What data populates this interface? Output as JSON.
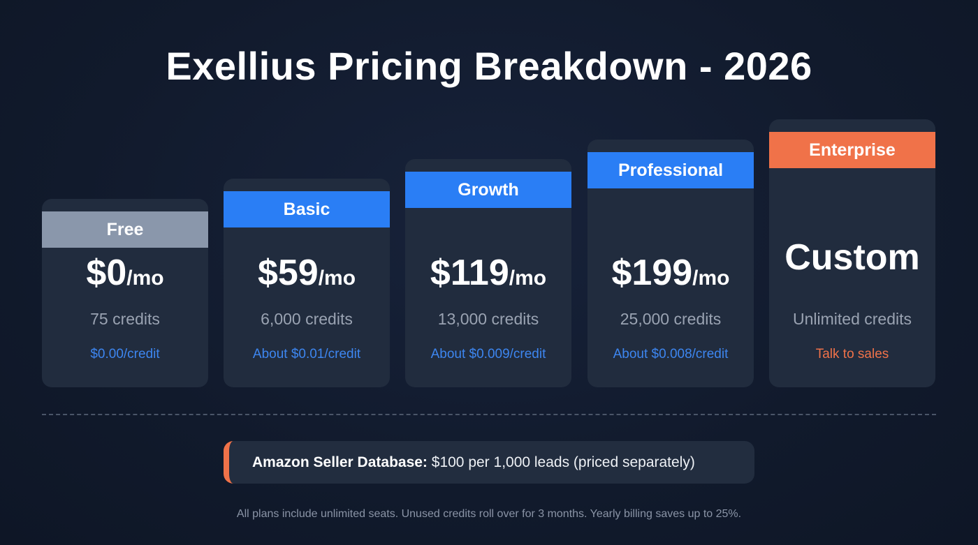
{
  "title": "Exellius Pricing Breakdown - 2026",
  "plans": [
    {
      "name": "Free",
      "price": "$0",
      "unit": "/mo",
      "credits": "75 credits",
      "per_credit": "$0.00/credit",
      "band_color": "#8a97ab",
      "note_color": "#3d86f0"
    },
    {
      "name": "Basic",
      "price": "$59",
      "unit": "/mo",
      "credits": "6,000 credits",
      "per_credit": "About $0.01/credit",
      "band_color": "#2a7ef5",
      "note_color": "#3d86f0"
    },
    {
      "name": "Growth",
      "price": "$119",
      "unit": "/mo",
      "credits": "13,000 credits",
      "per_credit": "About $0.009/credit",
      "band_color": "#2a7ef5",
      "note_color": "#3d86f0"
    },
    {
      "name": "Professional",
      "price": "$199",
      "unit": "/mo",
      "credits": "25,000 credits",
      "per_credit": "About $0.008/credit",
      "band_color": "#2a7ef5",
      "note_color": "#3d86f0"
    },
    {
      "name": "Enterprise",
      "price": "Custom",
      "unit": "",
      "credits": "Unlimited credits",
      "per_credit": "Talk to sales",
      "band_color": "#f07249",
      "note_color": "#f07249"
    }
  ],
  "banner": {
    "label": "Amazon Seller Database:",
    "text": " $100 per 1,000 leads (priced separately)",
    "accent": "#f07249"
  },
  "footer": "All plans include unlimited seats. Unused credits roll over for 3 months. Yearly billing saves up to 25%."
}
